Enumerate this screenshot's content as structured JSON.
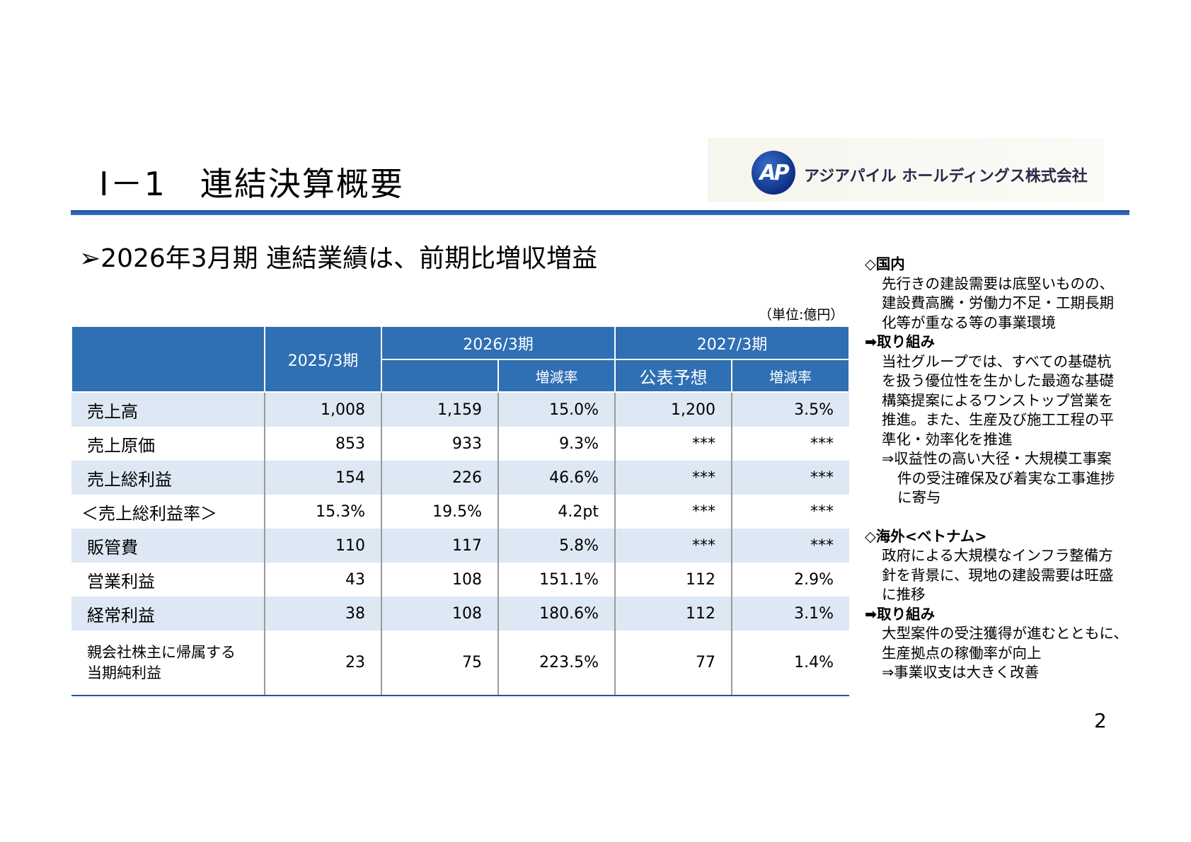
{
  "header": {
    "title": "Ⅰ－1　連結決算概要",
    "company": "アジアパイル ホールディングス株式会社",
    "logo_text": "AP"
  },
  "subtitle": "➢2026年3月期 連結業績は、前期比増収増益",
  "unit": "（単位:億円）",
  "table": {
    "col_2025": "2025/3期",
    "col_2026": "2026/3期",
    "col_2027": "2027/3期",
    "sub_change": "増減率",
    "sub_forecast": "公表予想",
    "rows": [
      {
        "label": "売上高",
        "v2025": "1,008",
        "v2026": "1,159",
        "chg2026": "15.0%",
        "f2027": "1,200",
        "chg2027": "3.5%"
      },
      {
        "label": "売上原価",
        "v2025": "853",
        "v2026": "933",
        "chg2026": "9.3%",
        "f2027": "***",
        "chg2027": "***"
      },
      {
        "label": "売上総利益",
        "v2025": "154",
        "v2026": "226",
        "chg2026": "46.6%",
        "f2027": "***",
        "chg2027": "***"
      },
      {
        "label": "＜売上総利益率＞",
        "v2025": "15.3%",
        "v2026": "19.5%",
        "chg2026": "4.2pt",
        "f2027": "***",
        "chg2027": "***"
      },
      {
        "label": "販管費",
        "v2025": "110",
        "v2026": "117",
        "chg2026": "5.8%",
        "f2027": "***",
        "chg2027": "***"
      },
      {
        "label": "営業利益",
        "v2025": "43",
        "v2026": "108",
        "chg2026": "151.1%",
        "f2027": "112",
        "chg2027": "2.9%"
      },
      {
        "label": "経常利益",
        "v2025": "38",
        "v2026": "108",
        "chg2026": "180.6%",
        "f2027": "112",
        "chg2027": "3.1%"
      },
      {
        "label_line1": "親会社株主に帰属する",
        "label_line2": "当期純利益",
        "v2025": "23",
        "v2026": "75",
        "chg2026": "223.5%",
        "f2027": "77",
        "chg2027": "1.4%"
      }
    ]
  },
  "side": {
    "domestic_head": "◇国内",
    "domestic_lines": [
      "先行きの建設需要は底堅いものの、",
      "建設費高騰・労働力不足・工期長期",
      "化等が重なる等の事業環境"
    ],
    "domestic_action_head": "➡取り組み",
    "domestic_action_lines": [
      "当社グループでは、すべての基礎杭",
      "を扱う優位性を生かした最適な基礎",
      "構築提案によるワンストップ営業を",
      "推進。また、生産及び施工工程の平",
      "準化・効率化を推進"
    ],
    "domestic_result_lines": [
      "⇒収益性の高い大径・大規模工事案",
      "件の受注確保及び着実な工事進捗",
      "に寄与"
    ],
    "overseas_head": "◇海外<ベトナム>",
    "overseas_lines": [
      "政府による大規模なインフラ整備方",
      "針を背景に、現地の建設需要は旺盛",
      "に推移"
    ],
    "overseas_action_head": "➡取り組み",
    "overseas_action_lines": [
      "大型案件の受注獲得が進むとともに、",
      "生産拠点の稼働率が向上",
      "⇒事業収支は大きく改善"
    ]
  },
  "page_number": "2",
  "colors": {
    "header_blue": "#2f6fb4",
    "row_stripe": "#dde8f4",
    "rule_blue": "#1e4f9e"
  }
}
